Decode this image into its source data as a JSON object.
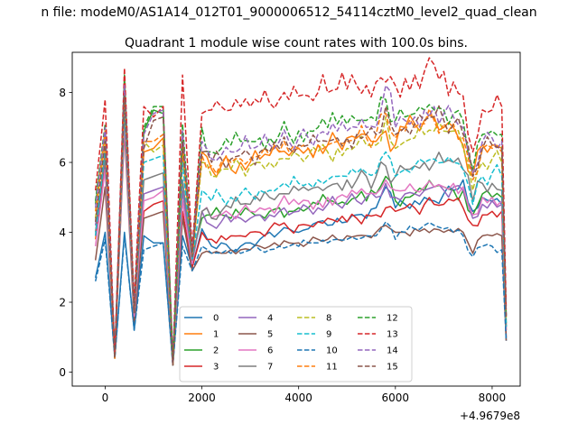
{
  "figure": {
    "suptitle": "n file: modeM0/AS1A14_012T01_9000006512_54114cztM0_level2_quad_clean",
    "title": "Quadrant 1 module wise count rates with 100.0s bins.",
    "x_offset_label": "+4.9679e8"
  },
  "chart_data": {
    "type": "line",
    "title": "Quadrant 1 module wise count rates with 100.0s bins.",
    "xlabel": "",
    "ylabel": "",
    "x_offset": "+4.9679e8",
    "xlim": [
      -680,
      8580
    ],
    "ylim": [
      -0.4,
      9.15
    ],
    "xticks": [
      0,
      2000,
      4000,
      6000,
      8000
    ],
    "yticks": [
      0,
      2,
      4,
      6,
      8
    ],
    "grid": false,
    "legend": {
      "location": "bottom-center",
      "columns": 4
    },
    "x_coarse": [
      -200,
      0,
      200,
      400,
      600,
      800,
      1000,
      1200,
      1400,
      1600,
      1800,
      2000,
      2200,
      2400,
      2600,
      2800,
      3000,
      3200,
      3400,
      3600,
      3800,
      4000,
      4200,
      4400,
      4600,
      4800,
      5000,
      5200,
      5400,
      5600,
      5800,
      6000,
      6200,
      6400,
      6600,
      6800,
      7000,
      7200,
      7400,
      7600,
      7800,
      8000,
      8200,
      8290
    ],
    "series": [
      {
        "name": "0",
        "color": "#1f77b4",
        "dash": "solid",
        "values": [
          2.7,
          4.0,
          0.4,
          4.0,
          1.2,
          3.9,
          3.7,
          3.7,
          0.2,
          3.9,
          3.0,
          4.1,
          3.6,
          3.7,
          3.5,
          3.6,
          3.7,
          3.8,
          4.0,
          4.0,
          4.1,
          4.0,
          4.1,
          4.3,
          4.2,
          4.4,
          4.3,
          4.5,
          4.4,
          4.7,
          5.3,
          4.7,
          4.8,
          4.9,
          5.0,
          4.9,
          5.1,
          5.2,
          5.5,
          4.6,
          5.0,
          4.9,
          4.8,
          0.9
        ]
      },
      {
        "name": "1",
        "color": "#ff7f0e",
        "dash": "solid",
        "values": [
          3.8,
          6.4,
          0.4,
          7.6,
          1.6,
          6.3,
          6.4,
          6.7,
          0.2,
          6.3,
          3.2,
          6.3,
          5.8,
          5.9,
          5.8,
          6.0,
          6.0,
          6.1,
          6.2,
          6.3,
          6.2,
          6.4,
          6.4,
          6.5,
          6.5,
          6.6,
          6.7,
          6.7,
          6.8,
          6.6,
          6.9,
          6.5,
          7.0,
          7.1,
          7.2,
          7.3,
          7.0,
          7.0,
          6.5,
          5.6,
          6.5,
          6.5,
          6.4,
          1.2
        ]
      },
      {
        "name": "2",
        "color": "#2ca02c",
        "dash": "solid",
        "values": [
          4.8,
          6.9,
          0.5,
          8.0,
          1.8,
          6.9,
          7.5,
          7.4,
          0.2,
          6.8,
          3.3,
          4.4,
          4.5,
          4.5,
          4.4,
          4.5,
          4.6,
          4.5,
          4.6,
          4.7,
          4.6,
          4.7,
          4.7,
          4.8,
          4.9,
          4.8,
          4.8,
          5.0,
          4.9,
          5.1,
          5.6,
          4.9,
          5.0,
          5.1,
          5.2,
          5.3,
          5.3,
          5.2,
          5.2,
          4.5,
          5.1,
          5.0,
          5.0,
          1.4
        ]
      },
      {
        "name": "3",
        "color": "#d62728",
        "dash": "solid",
        "values": [
          3.9,
          5.9,
          0.4,
          7.2,
          1.6,
          4.6,
          4.8,
          4.9,
          0.2,
          4.6,
          3.0,
          4.0,
          3.8,
          3.9,
          3.9,
          3.9,
          4.0,
          4.0,
          4.1,
          4.2,
          4.1,
          4.2,
          4.2,
          4.3,
          4.4,
          4.3,
          4.3,
          4.4,
          4.5,
          4.5,
          4.7,
          4.6,
          4.7,
          4.7,
          4.8,
          4.8,
          4.8,
          4.9,
          4.7,
          4.2,
          4.5,
          4.6,
          4.6,
          1.0
        ]
      },
      {
        "name": "4",
        "color": "#9467bd",
        "dash": "solid",
        "values": [
          4.2,
          6.1,
          0.4,
          7.8,
          1.7,
          5.1,
          5.2,
          5.3,
          0.2,
          5.2,
          3.1,
          4.6,
          4.2,
          4.3,
          4.3,
          4.4,
          4.4,
          4.5,
          4.5,
          4.6,
          4.5,
          4.6,
          4.7,
          4.7,
          4.8,
          4.8,
          4.9,
          4.9,
          5.0,
          5.0,
          5.4,
          5.0,
          5.1,
          5.1,
          5.2,
          5.3,
          5.2,
          5.3,
          5.2,
          4.4,
          4.8,
          4.9,
          4.8,
          1.3
        ]
      },
      {
        "name": "5",
        "color": "#8c564b",
        "dash": "solid",
        "values": [
          3.2,
          5.3,
          0.4,
          6.9,
          1.4,
          4.4,
          4.5,
          4.6,
          0.2,
          4.4,
          2.9,
          3.4,
          3.4,
          3.4,
          3.5,
          3.5,
          3.5,
          3.6,
          3.6,
          3.6,
          3.7,
          3.7,
          3.7,
          3.8,
          3.8,
          3.8,
          3.9,
          3.9,
          3.9,
          4.0,
          4.2,
          4.0,
          4.0,
          4.1,
          4.1,
          4.1,
          4.0,
          4.0,
          4.0,
          3.4,
          3.9,
          3.9,
          3.9,
          0.9
        ]
      },
      {
        "name": "6",
        "color": "#e377c2",
        "dash": "solid",
        "values": [
          3.6,
          5.8,
          0.4,
          7.1,
          1.6,
          4.9,
          5.0,
          5.2,
          0.2,
          4.9,
          3.1,
          4.6,
          4.4,
          4.5,
          4.5,
          4.6,
          4.6,
          4.7,
          4.7,
          4.8,
          4.8,
          4.8,
          4.9,
          4.9,
          5.0,
          5.0,
          5.0,
          5.1,
          5.1,
          5.1,
          5.5,
          5.2,
          5.2,
          5.2,
          5.3,
          5.3,
          5.3,
          5.4,
          5.3,
          4.5,
          5.0,
          5.0,
          4.9,
          1.2
        ]
      },
      {
        "name": "7",
        "color": "#7f7f7f",
        "dash": "solid",
        "values": [
          4.0,
          6.2,
          0.4,
          7.5,
          1.7,
          5.5,
          5.6,
          5.7,
          0.2,
          5.5,
          3.2,
          4.6,
          4.4,
          4.6,
          4.7,
          4.8,
          4.8,
          4.9,
          5.0,
          5.1,
          5.1,
          5.2,
          5.2,
          5.3,
          5.3,
          5.4,
          5.5,
          5.5,
          5.6,
          5.6,
          5.9,
          5.6,
          5.8,
          5.9,
          6.0,
          6.0,
          6.0,
          6.0,
          5.8,
          4.9,
          5.4,
          5.4,
          5.2,
          1.3
        ]
      },
      {
        "name": "8",
        "color": "#bcbd22",
        "dash": "dashed",
        "values": [
          4.4,
          6.8,
          0.4,
          8.0,
          1.8,
          6.6,
          6.3,
          6.5,
          0.2,
          6.5,
          3.3,
          6.0,
          5.6,
          5.8,
          5.8,
          5.9,
          5.9,
          6.0,
          6.0,
          6.1,
          6.1,
          6.2,
          6.2,
          6.3,
          6.3,
          6.4,
          6.4,
          6.5,
          6.5,
          6.5,
          7.3,
          6.4,
          6.6,
          6.7,
          6.8,
          6.9,
          6.9,
          6.9,
          6.4,
          5.2,
          6.0,
          6.1,
          6.0,
          1.5
        ]
      },
      {
        "name": "9",
        "color": "#17becf",
        "dash": "dashed",
        "values": [
          3.9,
          6.4,
          0.4,
          7.6,
          1.7,
          6.0,
          6.1,
          6.2,
          0.2,
          6.0,
          3.2,
          5.2,
          4.9,
          5.0,
          5.0,
          5.1,
          5.1,
          5.2,
          5.2,
          5.3,
          5.3,
          5.4,
          5.4,
          5.5,
          5.5,
          5.6,
          5.6,
          5.7,
          5.7,
          5.7,
          6.3,
          5.6,
          5.8,
          5.9,
          6.0,
          6.1,
          6.0,
          6.0,
          5.8,
          4.8,
          5.6,
          5.7,
          5.6,
          1.3
        ]
      },
      {
        "name": "10",
        "color": "#1f77b4",
        "dash": "dashed",
        "values": [
          2.6,
          3.8,
          0.4,
          3.9,
          1.2,
          3.5,
          3.6,
          3.7,
          0.2,
          3.6,
          2.9,
          3.6,
          3.4,
          3.4,
          3.4,
          3.4,
          3.5,
          3.5,
          3.5,
          3.6,
          3.6,
          3.6,
          3.7,
          3.7,
          3.7,
          3.8,
          3.8,
          3.8,
          3.9,
          3.9,
          4.3,
          3.8,
          4.0,
          4.1,
          4.2,
          4.2,
          4.1,
          4.0,
          3.9,
          3.3,
          3.6,
          3.6,
          3.5,
          0.9
        ]
      },
      {
        "name": "11",
        "color": "#ff7f0e",
        "dash": "dashed",
        "values": [
          4.6,
          6.9,
          0.4,
          8.3,
          1.8,
          6.6,
          6.6,
          6.8,
          0.2,
          6.6,
          3.3,
          6.2,
          5.9,
          6.0,
          6.0,
          6.1,
          6.1,
          6.2,
          6.2,
          6.3,
          6.3,
          6.4,
          6.4,
          6.5,
          6.5,
          6.6,
          6.6,
          6.7,
          6.7,
          6.8,
          7.4,
          6.7,
          6.9,
          7.0,
          7.1,
          7.2,
          7.1,
          7.1,
          6.7,
          5.5,
          6.4,
          6.4,
          6.3,
          1.6
        ]
      },
      {
        "name": "12",
        "color": "#2ca02c",
        "dash": "dashed",
        "values": [
          4.9,
          7.1,
          0.5,
          8.5,
          1.9,
          7.0,
          7.6,
          7.6,
          0.3,
          7.1,
          3.4,
          7.0,
          6.3,
          6.4,
          6.5,
          6.6,
          6.6,
          6.7,
          6.7,
          6.8,
          6.8,
          6.9,
          6.9,
          7.0,
          7.0,
          7.1,
          7.1,
          7.2,
          7.2,
          7.2,
          7.8,
          7.2,
          7.3,
          7.4,
          7.5,
          7.5,
          7.5,
          7.4,
          7.2,
          5.8,
          6.8,
          6.9,
          6.8,
          1.6
        ]
      },
      {
        "name": "13",
        "color": "#d62728",
        "dash": "dashed",
        "values": [
          5.2,
          7.8,
          0.5,
          8.7,
          2.0,
          7.6,
          7.3,
          7.6,
          0.3,
          8.5,
          3.5,
          7.4,
          7.5,
          7.6,
          7.5,
          7.6,
          7.6,
          7.7,
          7.7,
          7.8,
          7.8,
          7.9,
          7.9,
          8.0,
          8.0,
          8.1,
          8.1,
          8.2,
          8.2,
          8.3,
          8.3,
          8.2,
          8.4,
          8.5,
          8.6,
          8.8,
          8.6,
          8.3,
          7.9,
          6.3,
          7.5,
          7.5,
          7.6,
          1.8
        ]
      },
      {
        "name": "14",
        "color": "#9467bd",
        "dash": "dashed",
        "values": [
          4.7,
          7.0,
          0.5,
          8.2,
          1.8,
          6.8,
          7.4,
          7.5,
          0.3,
          6.9,
          3.4,
          6.6,
          6.1,
          6.2,
          6.3,
          6.4,
          6.4,
          6.5,
          6.5,
          6.6,
          6.6,
          6.7,
          6.7,
          6.8,
          6.8,
          6.9,
          6.9,
          7.0,
          7.0,
          7.0,
          8.2,
          7.0,
          7.2,
          7.3,
          7.5,
          7.6,
          7.4,
          7.3,
          7.0,
          5.7,
          6.6,
          6.7,
          6.6,
          1.6
        ]
      },
      {
        "name": "15",
        "color": "#8c564b",
        "dash": "dashed",
        "values": [
          4.3,
          6.6,
          0.4,
          7.9,
          1.7,
          6.4,
          7.2,
          7.3,
          0.2,
          6.6,
          3.3,
          6.3,
          6.0,
          6.1,
          6.1,
          6.2,
          6.2,
          6.3,
          6.3,
          6.4,
          6.4,
          6.5,
          6.5,
          6.6,
          6.6,
          6.7,
          6.7,
          6.8,
          6.8,
          6.8,
          7.6,
          6.8,
          7.0,
          7.1,
          7.2,
          7.3,
          7.2,
          7.1,
          6.8,
          5.6,
          6.4,
          6.5,
          6.4,
          1.5
        ]
      }
    ]
  }
}
